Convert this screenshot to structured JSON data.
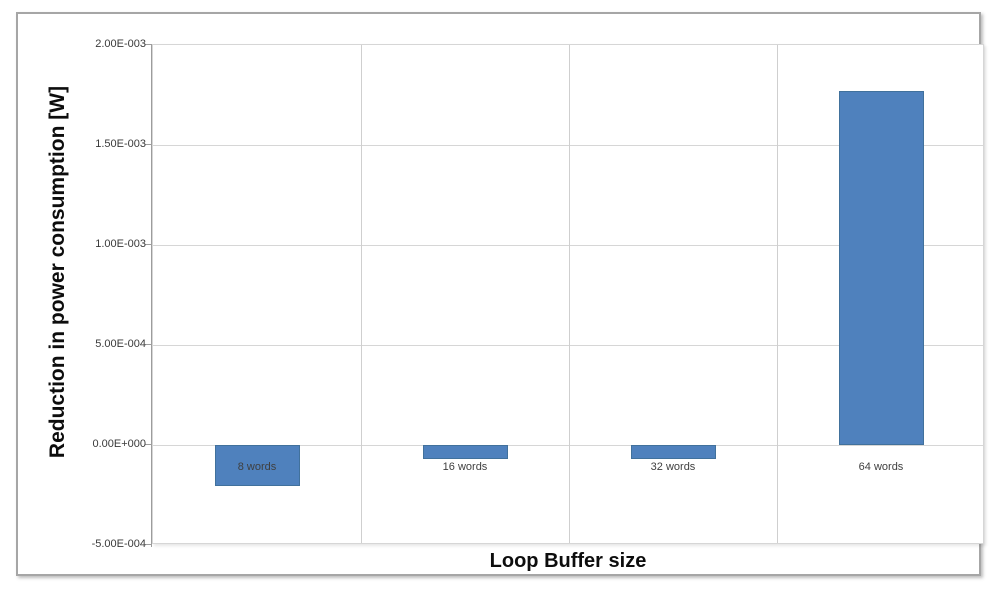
{
  "chart_data": {
    "type": "bar",
    "title": "",
    "xlabel": "Loop Buffer size",
    "ylabel": "Reduction in power consumption [W]",
    "categories": [
      "8 words",
      "16 words",
      "32 words",
      "64 words"
    ],
    "values": [
      -0.000205,
      -7e-05,
      -7e-05,
      0.00177
    ],
    "ylim": [
      -0.0005,
      0.002
    ],
    "y_ticks": [
      {
        "value": 0.002,
        "label": "2.00E-003"
      },
      {
        "value": 0.0015,
        "label": "1.50E-003"
      },
      {
        "value": 0.001,
        "label": "1.00E-003"
      },
      {
        "value": 0.0005,
        "label": "5.00E-004"
      },
      {
        "value": 0.0,
        "label": "0.00E+000"
      },
      {
        "value": -0.0005,
        "label": "-5.00E-004"
      }
    ],
    "grid": true,
    "legend": false,
    "bar_color": "#4f81bd",
    "bar_border_color": "#41719c",
    "tick_label_color": "#3a3a3a",
    "category_label_color": "#3f3f3f"
  }
}
